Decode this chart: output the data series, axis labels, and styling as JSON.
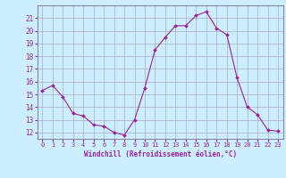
{
  "x": [
    0,
    1,
    2,
    3,
    4,
    5,
    6,
    7,
    8,
    9,
    10,
    11,
    12,
    13,
    14,
    15,
    16,
    17,
    18,
    19,
    20,
    21,
    22,
    23
  ],
  "y": [
    15.3,
    15.7,
    14.8,
    13.5,
    13.3,
    12.6,
    12.5,
    12.0,
    11.8,
    13.0,
    15.5,
    18.5,
    19.5,
    20.4,
    20.4,
    21.2,
    21.5,
    20.2,
    19.7,
    16.3,
    14.0,
    13.4,
    12.2,
    12.1
  ],
  "line_color": "#992299",
  "marker_color": "#992299",
  "bg_color": "#cceeff",
  "grid_color": "#aaaacc",
  "xlabel": "Windchill (Refroidissement éolien,°C)",
  "ylabel_ticks": [
    12,
    13,
    14,
    15,
    16,
    17,
    18,
    19,
    20,
    21
  ],
  "xtick_labels": [
    "0",
    "1",
    "2",
    "3",
    "4",
    "5",
    "6",
    "7",
    "8",
    "9",
    "10",
    "11",
    "12",
    "13",
    "14",
    "15",
    "16",
    "17",
    "18",
    "19",
    "20",
    "21",
    "22",
    "23"
  ],
  "ylim": [
    11.5,
    22.0
  ],
  "xlim": [
    -0.5,
    23.5
  ],
  "tick_color": "#992299",
  "label_color": "#992299",
  "spine_color": "#888899",
  "tick_fontsize": 5.0,
  "xlabel_fontsize": 5.5
}
